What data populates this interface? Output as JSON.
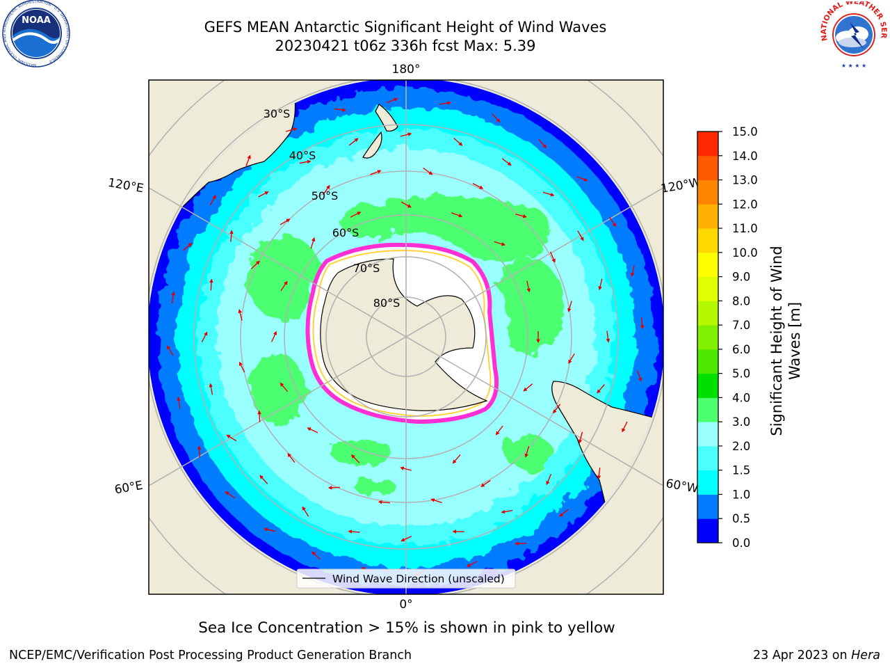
{
  "header": {
    "title_line1": "GEFS MEAN Antarctic Significant Height of Wind Waves",
    "title_line2": "20230421 t06z 336h fcst   Max: 5.39"
  },
  "logos": {
    "noaa_text": "NOAA",
    "noaa_ring": "NATIONAL OCEANIC AND ATMOSPHERIC ADMINISTRATION · U.S. DEPARTMENT OF COMMERCE",
    "nws_ring": "NATIONAL WEATHER SERVICE"
  },
  "map": {
    "projection": "south-polar stereographic",
    "longitude_labels": {
      "top": "180°",
      "bottom": "0°",
      "upper_left": "120°E",
      "upper_right": "120°W",
      "lower_left": "60°E",
      "lower_right": "60°W"
    },
    "latitude_labels": [
      "30°S",
      "40°S",
      "50°S",
      "60°S",
      "70°S",
      "80°S"
    ],
    "legend_label": "Wind Wave Direction (unscaled)",
    "colors": {
      "land": "#eeebd8",
      "ocean_deep_blue": "#0000ff",
      "blue": "#007bff",
      "cyan": "#00ffff",
      "light_cyan": "#4cffff",
      "pale_cyan": "#99ffff",
      "green_light": "#4cff6f",
      "green": "#00e000",
      "arrow": "#ff0000",
      "ice_edge": "#ff00ff"
    }
  },
  "colorbar": {
    "label": "Significant Height of Wind Waves [m]",
    "label_line1": "Significant Height of Wind",
    "label_line2": "Waves [m]",
    "ticks": [
      "0.0",
      "0.5",
      "1.0",
      "1.5",
      "2.0",
      "3.0",
      "4.0",
      "5.0",
      "6.0",
      "7.0",
      "8.0",
      "9.0",
      "10.0",
      "11.0",
      "12.0",
      "13.0",
      "14.0",
      "15.0"
    ],
    "colors": [
      "#0000ff",
      "#007bff",
      "#00ffff",
      "#4cffff",
      "#99ffff",
      "#4cff6f",
      "#00e000",
      "#4ce800",
      "#80f000",
      "#b4f800",
      "#e0ff00",
      "#ffff00",
      "#ffd800",
      "#ffb000",
      "#ff8400",
      "#ff5a00",
      "#ff2800"
    ]
  },
  "footer": {
    "sea_ice_note": "Sea Ice Concentration > 15% is shown in pink to yellow",
    "credit": "NCEP/EMC/Verification Post Processing Product Generation Branch",
    "date_prefix": "23 Apr 2023 on ",
    "machine": "Hera"
  }
}
